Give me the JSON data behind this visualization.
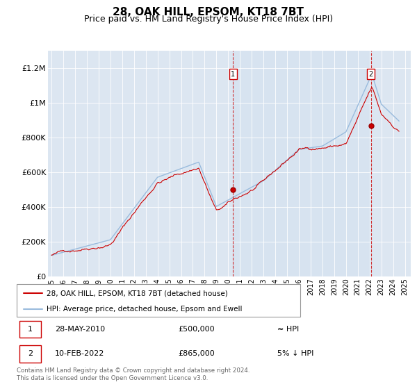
{
  "title": "28, OAK HILL, EPSOM, KT18 7BT",
  "subtitle": "Price paid vs. HM Land Registry's House Price Index (HPI)",
  "title_fontsize": 11,
  "subtitle_fontsize": 9,
  "ylabel_ticks": [
    "£0",
    "£200K",
    "£400K",
    "£600K",
    "£800K",
    "£1M",
    "£1.2M"
  ],
  "ytick_values": [
    0,
    200000,
    400000,
    600000,
    800000,
    1000000,
    1200000
  ],
  "ylim": [
    0,
    1300000
  ],
  "xlim_start": 1994.7,
  "xlim_end": 2025.5,
  "bg_color": "#dce6f1",
  "shade_color": "#cdd9ea",
  "line_color_property": "#cc0000",
  "line_color_hpi": "#99bbdd",
  "marker1_x": 2010.41,
  "marker1_y": 500000,
  "marker2_x": 2022.11,
  "marker2_y": 865000,
  "legend_line1": "28, OAK HILL, EPSOM, KT18 7BT (detached house)",
  "legend_line2": "HPI: Average price, detached house, Epsom and Ewell",
  "annotation1_date": "28-MAY-2010",
  "annotation1_price": "£500,000",
  "annotation1_hpi": "≈ HPI",
  "annotation2_date": "10-FEB-2022",
  "annotation2_price": "£865,000",
  "annotation2_hpi": "5% ↓ HPI",
  "footer": "Contains HM Land Registry data © Crown copyright and database right 2024.\nThis data is licensed under the Open Government Licence v3.0."
}
